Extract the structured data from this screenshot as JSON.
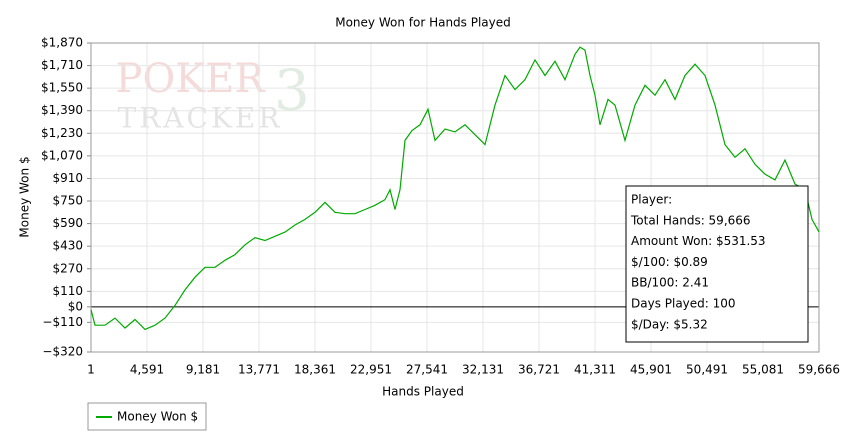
{
  "chart_data": {
    "type": "line",
    "title": "Money Won for Hands Played",
    "xlabel": "Hands Played",
    "ylabel": "Money Won $",
    "watermark": [
      "POKER",
      "TRACKER",
      "3"
    ],
    "xlim": [
      1,
      59666
    ],
    "ylim": [
      -320,
      1870
    ],
    "grid": true,
    "xticks": [
      1,
      {
        "value": 4591,
        "label": "4,591"
      },
      {
        "value": 9181,
        "label": "9,181"
      },
      {
        "value": 13771,
        "label": "13,771"
      },
      {
        "value": 18361,
        "label": "18,361"
      },
      {
        "value": 22951,
        "label": "22,951"
      },
      {
        "value": 27541,
        "label": "27,541"
      },
      {
        "value": 32131,
        "label": "32,131"
      },
      {
        "value": 36721,
        "label": "36,721"
      },
      {
        "value": 41311,
        "label": "41,311"
      },
      {
        "value": 45901,
        "label": "45,901"
      },
      {
        "value": 50491,
        "label": "50,491"
      },
      {
        "value": 55081,
        "label": "55,081"
      },
      {
        "value": 59666,
        "label": "59,666"
      }
    ],
    "yticks": [
      {
        "value": 1870,
        "label": "$1,870"
      },
      {
        "value": 1710,
        "label": "$1,710"
      },
      {
        "value": 1550,
        "label": "$1,550"
      },
      {
        "value": 1390,
        "label": "$1,390"
      },
      {
        "value": 1230,
        "label": "$1,230"
      },
      {
        "value": 1070,
        "label": "$1,070"
      },
      {
        "value": 910,
        "label": "$910"
      },
      {
        "value": 750,
        "label": "$750"
      },
      {
        "value": 590,
        "label": "$590"
      },
      {
        "value": 430,
        "label": "$430"
      },
      {
        "value": 270,
        "label": "$270"
      },
      {
        "value": 110,
        "label": "$110"
      },
      {
        "value": 0,
        "label": "$0"
      },
      {
        "value": -110,
        "label": "−$110"
      },
      {
        "value": -320,
        "label": "−$320"
      }
    ],
    "x": [
      1,
      329,
      1148,
      1968,
      2788,
      3607,
      4427,
      5246,
      6066,
      6886,
      7705,
      8525,
      9344,
      10164,
      10984,
      11803,
      12623,
      13442,
      14262,
      15082,
      15901,
      16721,
      17540,
      18360,
      19180,
      19999,
      20819,
      21638,
      22458,
      23278,
      24097,
      24507,
      24917,
      25327,
      25736,
      26310,
      26966,
      27621,
      28195,
      29015,
      29834,
      30654,
      31474,
      32293,
      33113,
      33932,
      34752,
      35572,
      36391,
      37211,
      38030,
      38850,
      39670,
      40079,
      40489,
      40899,
      41309,
      41719,
      42374,
      42948,
      43768,
      44587,
      45407,
      46226,
      47046,
      47866,
      48685,
      49505,
      50324,
      51144,
      51964,
      52783,
      53603,
      54422,
      55242,
      56062,
      56881,
      57701,
      58520,
      59094,
      59666
    ],
    "series": [
      {
        "name": "Money Won $",
        "color": "#00aa00",
        "values": [
          -20,
          -130,
          -130,
          -80,
          -150,
          -90,
          -160,
          -130,
          -80,
          10,
          120,
          210,
          280,
          280,
          330,
          370,
          440,
          490,
          470,
          500,
          530,
          580,
          620,
          670,
          740,
          670,
          660,
          660,
          690,
          720,
          760,
          830,
          690,
          830,
          1180,
          1250,
          1290,
          1400,
          1180,
          1260,
          1240,
          1290,
          1220,
          1150,
          1430,
          1640,
          1540,
          1610,
          1750,
          1640,
          1740,
          1610,
          1790,
          1840,
          1820,
          1640,
          1500,
          1290,
          1470,
          1430,
          1180,
          1430,
          1570,
          1500,
          1610,
          1470,
          1640,
          1720,
          1640,
          1430,
          1150,
          1060,
          1120,
          1010,
          940,
          900,
          1040,
          870,
          830,
          620,
          531.53
        ]
      }
    ],
    "info_box": [
      "Player:",
      "Total Hands: 59,666",
      "Amount Won: $531.53",
      "$/100: $0.89",
      "BB/100: 2.41",
      "Days Played: 100",
      "$/Day: $5.32"
    ]
  }
}
